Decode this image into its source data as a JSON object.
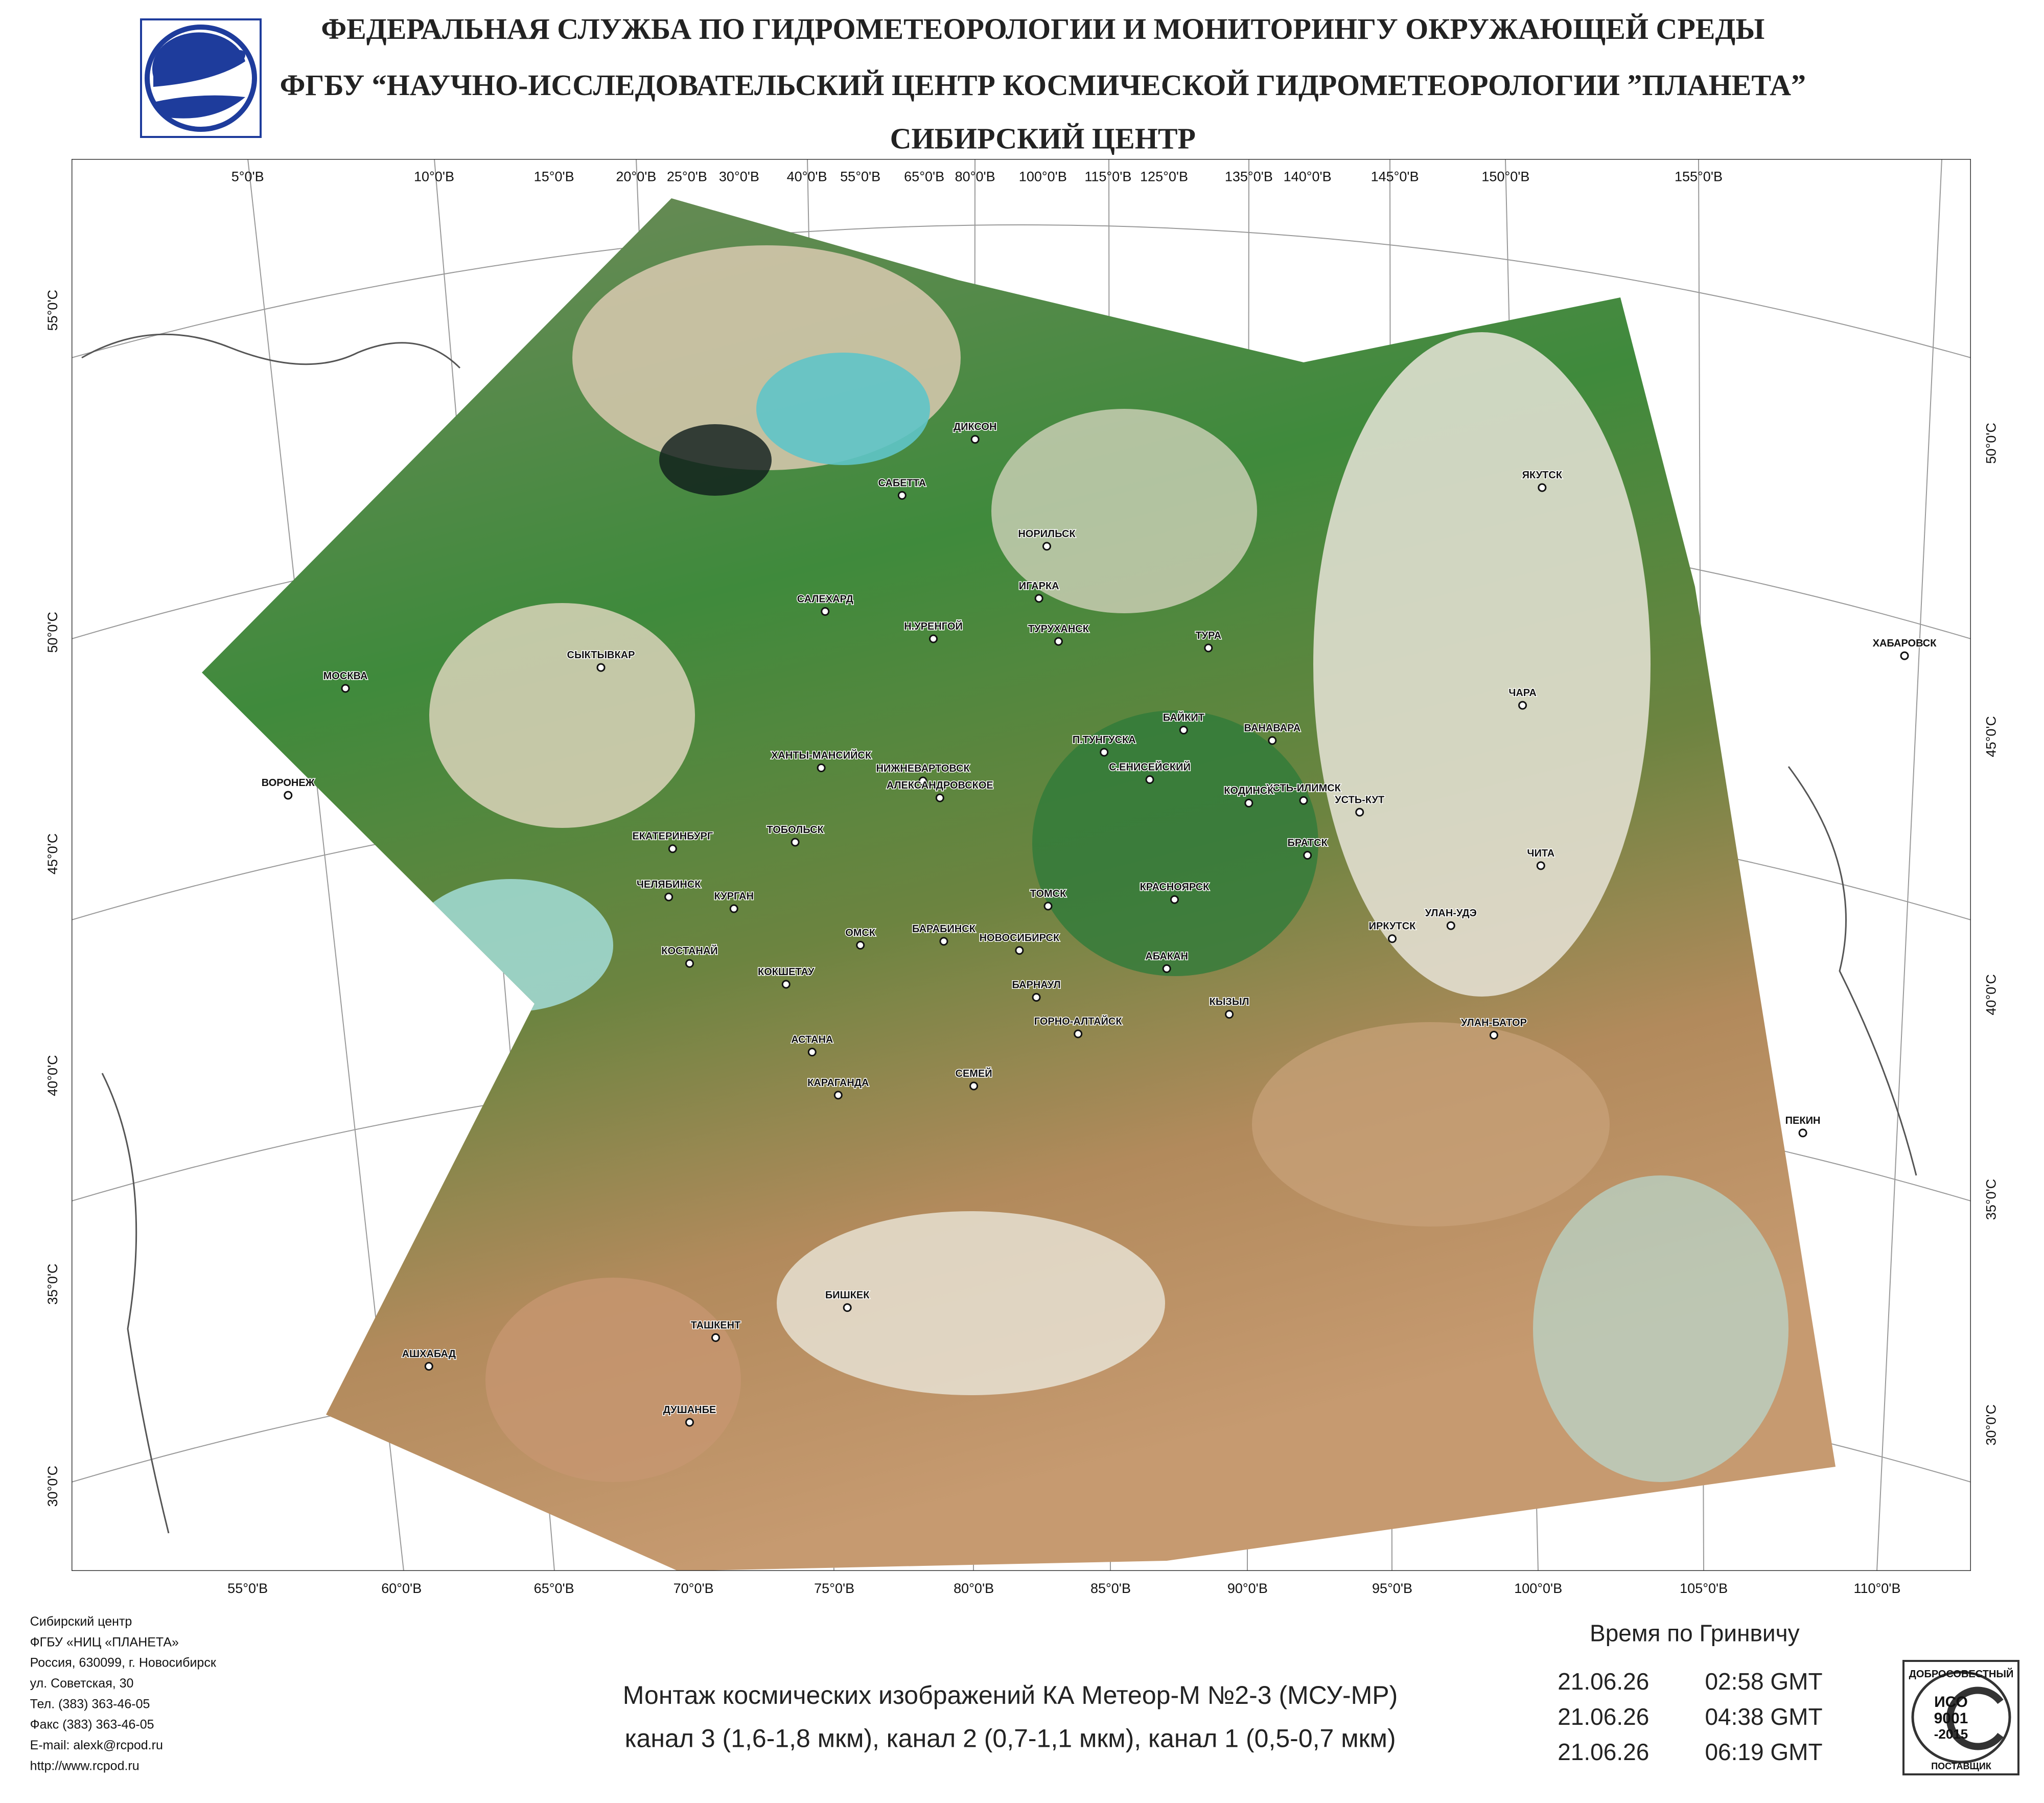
{
  "header": {
    "lines": [
      "ФЕДЕРАЛЬНАЯ СЛУЖБА ПО ГИДРОМЕТЕОРОЛОГИИ И МОНИТОРИНГУ ОКРУЖАЮЩЕЙ СРЕДЫ",
      "ФГБУ “НАУЧНО-ИССЛЕДОВАТЕЛЬСКИЙ ЦЕНТР КОСМИЧЕСКОЙ ГИДРОМЕТЕОРОЛОГИИ ”ПЛАНЕТА”",
      "СИБИРСКИЙ  ЦЕНТР"
    ]
  },
  "map": {
    "top_labels": [
      "5°0'В",
      "10°0'В",
      "15°0'В",
      "20°0'В",
      "25°0'В",
      "30°0'В",
      "40°0'В",
      "55°0'В",
      "65°0'В",
      "80°0'В",
      "100°0'В",
      "115°0'В",
      "125°0'В",
      "135°0'В",
      "140°0'В",
      "145°0'В",
      "150°0'В",
      "155°0'В"
    ],
    "bottom_labels": [
      "55°0'В",
      "60°0'В",
      "65°0'В",
      "70°0'В",
      "75°0'В",
      "80°0'В",
      "85°0'В",
      "90°0'В",
      "95°0'В",
      "100°0'В",
      "105°0'В",
      "110°0'В"
    ],
    "left_labels": [
      "55°0'С",
      "50°0'С",
      "45°0'С",
      "40°0'С",
      "35°0'С",
      "30°0'С"
    ],
    "right_labels": [
      "50°0'С",
      "45°0'С",
      "40°0'С",
      "35°0'С",
      "30°0'С"
    ],
    "cities": [
      "ДИКСОН",
      "САБЕТТА",
      "НОРИЛЬСК",
      "ИГАРКА",
      "САЛЕХАРД",
      "Н.УРЕНГОЙ",
      "ТУРУХАНСК",
      "ТУРА",
      "ЯКУТСК",
      "ХАБАРОВСК",
      "ЧАРА",
      "СЫКТЫВКАР",
      "МОСКВА",
      "БАЙКИТ",
      "ВАНАВАРА",
      "П.ТУНГУСКА",
      "ХАНТЫ-МАНСИЙСК",
      "НИЖНЕВАРТОВСК",
      "ВОРОНЕЖ",
      "С.ЕНИСЕЙСКИЙ",
      "УСТЬ-ИЛИМСК",
      "КОДИНСК",
      "АЛЕКСАНДРОВСКОЕ",
      "УСТЬ-КУТ",
      "ТОБОЛЬСК",
      "ЕКАТЕРИНБУРГ",
      "БРАТСК",
      "ЧИТА",
      "ЧЕЛЯБИНСК",
      "ТОМСК",
      "КРАСНОЯРСК",
      "КУРГАН",
      "ОМСК",
      "НОВОСИБИРСК",
      "БАРАБИНСК",
      "ИРКУТСК",
      "УЛАН-УДЭ",
      "КОСТАНАЙ",
      "КОКШЕТАУ",
      "АБАКАН",
      "БАРНАУЛ",
      "КЫЗЫЛ",
      "ГОРНО-АЛТАЙСК",
      "УЛАН-БАТОР",
      "АСТАНА",
      "СЕМЕЙ",
      "КАРАГАНДА",
      "ПЕКИН",
      "БИШКЕК",
      "ТАШКЕНТ",
      "АШХАБАД",
      "ДУШАНБЕ"
    ]
  },
  "footer": {
    "contacts": [
      "Сибирский центр",
      "ФГБУ «НИЦ «ПЛАНЕТА»",
      "Россия, 630099, г. Новосибирск",
      "ул. Советская, 30",
      "Тел. (383) 363-46-05",
      "Факс (383) 363-46-05",
      "E-mail: alexk@rcpod.ru",
      "http://www.rcpod.ru"
    ],
    "caption": [
      "Монтаж космических изображений КА Метеор-М №2-3 (МСУ-МР)",
      "канал 3 (1,6-1,8 мкм), канал 2 (0,7-1,1 мкм), канал 1 (0,5-0,7 мкм)"
    ],
    "time_title": "Время по Гринвичу",
    "times": [
      {
        "date": "21.06.26",
        "time": "02:58 GMT"
      },
      {
        "date": "21.06.26",
        "time": "04:38 GMT"
      },
      {
        "date": "21.06.26",
        "time": "06:19 GMT"
      }
    ],
    "certificate": {
      "top": "ДОБРОСОВЕСТНЫЙ",
      "name": "ИСО",
      "standard": "9001",
      "year": "-2015",
      "bottom": "ПОСТАВЩИК"
    }
  }
}
